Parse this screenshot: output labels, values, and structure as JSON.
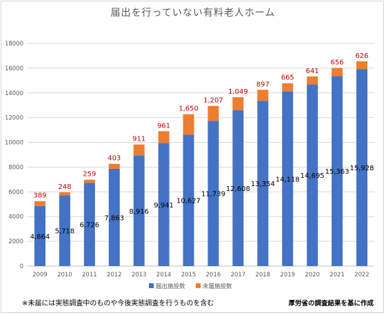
{
  "chart_data": {
    "type": "bar",
    "stacked": true,
    "title": "届出を行っていない有料老人ホーム",
    "categories": [
      "2009",
      "2010",
      "2011",
      "2012",
      "2013",
      "2014",
      "2015",
      "2016",
      "2017",
      "2018",
      "2019",
      "2020",
      "2021",
      "2022"
    ],
    "series": [
      {
        "name": "届出施設数",
        "color": "#4472c4",
        "values": [
          4864,
          5718,
          6726,
          7863,
          8916,
          9941,
          10627,
          11739,
          12608,
          13354,
          14118,
          14695,
          15363,
          15928
        ],
        "labels": [
          "4,864",
          "5,718",
          "6,726",
          "7,863",
          "8,916",
          "9,941",
          "10,627",
          "11,739",
          "12,608",
          "13,354",
          "14,118",
          "14,695",
          "15,363",
          "15,928"
        ]
      },
      {
        "name": "未届施設数",
        "color": "#ed7d31",
        "values": [
          389,
          248,
          259,
          403,
          911,
          961,
          1650,
          1207,
          1049,
          897,
          665,
          641,
          656,
          626
        ],
        "labels": [
          "389",
          "248",
          "259",
          "403",
          "911",
          "961",
          "1,650",
          "1,207",
          "1,049",
          "897",
          "665",
          "641",
          "656",
          "626"
        ]
      }
    ],
    "ylim": [
      0,
      18000
    ],
    "yticks": [
      "0",
      "2000",
      "4000",
      "6000",
      "8000",
      "10000",
      "12000",
      "14000",
      "16000",
      "18000"
    ],
    "grid": true,
    "legend": "bottom"
  },
  "notes": {
    "left": "※未届には実態調査中のものや今後実態調査を行うものを含む",
    "right": "厚労省の調査結果を基に作成"
  }
}
